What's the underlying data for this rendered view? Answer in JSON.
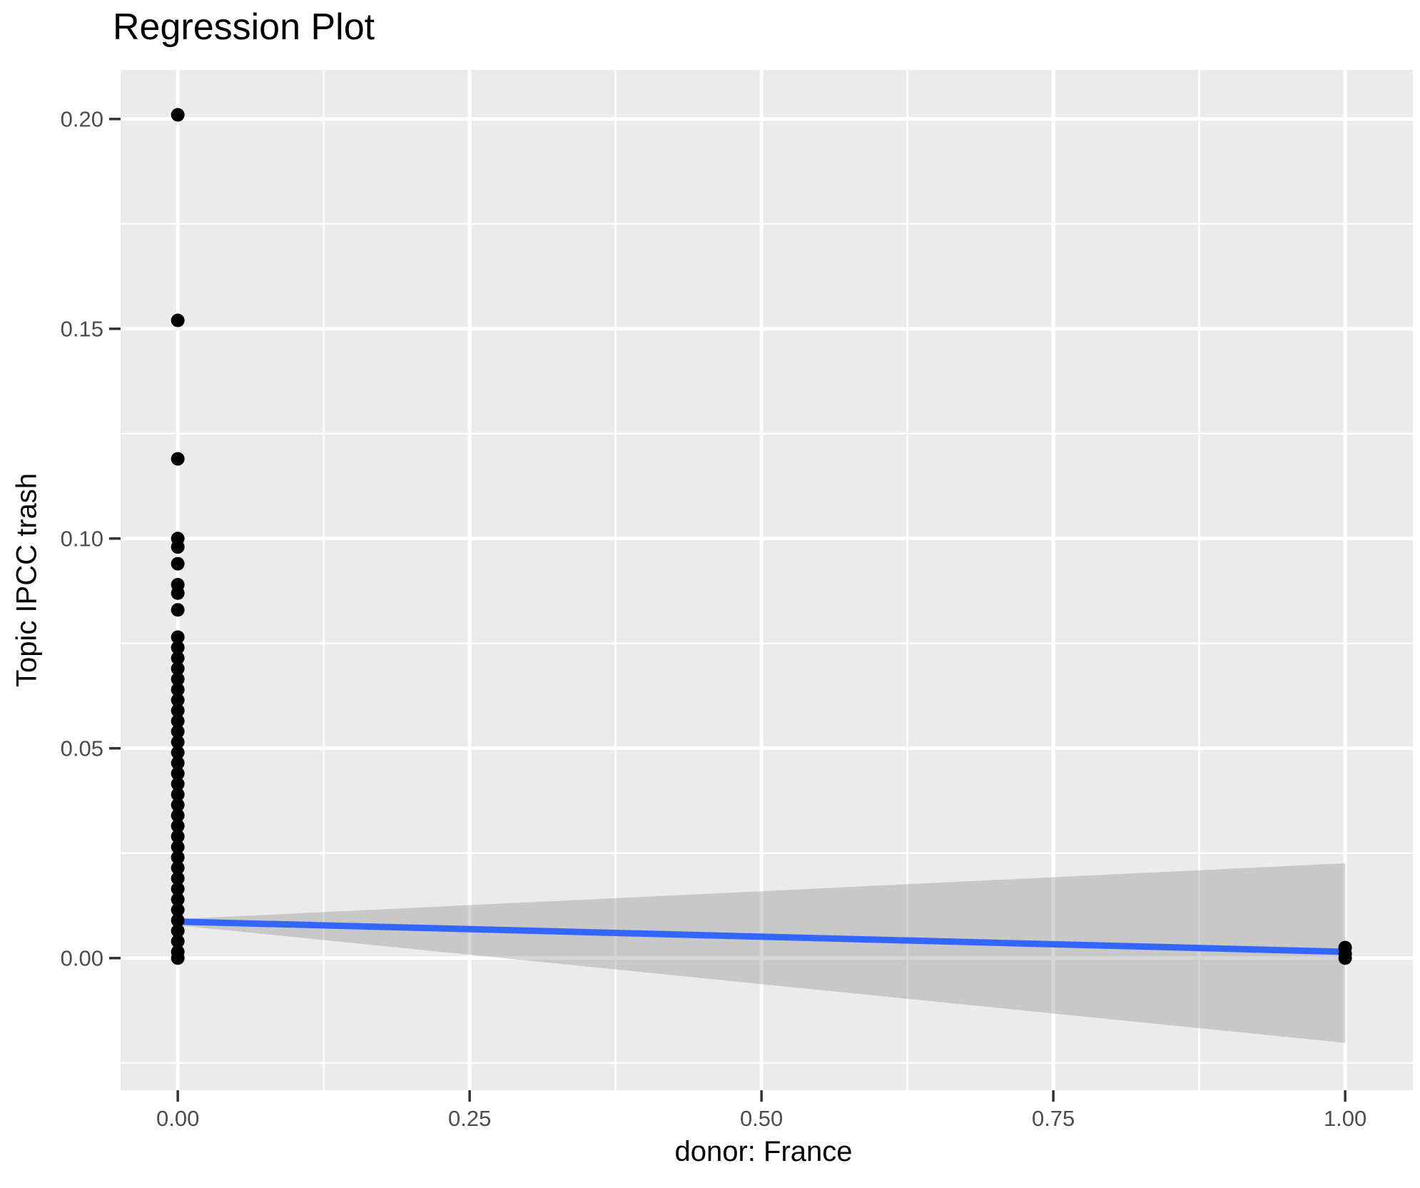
{
  "chart_data": {
    "type": "scatter",
    "title": "Regression Plot",
    "xlabel": "donor: France",
    "ylabel": "Topic IPCC trash",
    "xlim": [
      -0.049,
      1.058
    ],
    "ylim": [
      -0.0315,
      0.2117
    ],
    "grid": true,
    "legend": false,
    "x_ticks": {
      "values": [
        0.0,
        0.25,
        0.5,
        0.75,
        1.0
      ],
      "labels": [
        "0.00",
        "0.25",
        "0.50",
        "0.75",
        "1.00"
      ]
    },
    "y_ticks": {
      "values": [
        0.0,
        0.05,
        0.1,
        0.15,
        0.2
      ],
      "labels": [
        "0.00",
        "0.05",
        "0.10",
        "0.15",
        "0.20"
      ]
    },
    "x_minor": [
      0.125,
      0.375,
      0.625,
      0.875
    ],
    "y_minor": [
      -0.025,
      0.025,
      0.075,
      0.125,
      0.175
    ],
    "series": [
      {
        "name": "observations at donor=0",
        "x": 0,
        "y": [
          0.201,
          0.152,
          0.119,
          0.1,
          0.098,
          0.094,
          0.089,
          0.087,
          0.083,
          0.0765,
          0.074,
          0.0715,
          0.069,
          0.0665,
          0.064,
          0.0615,
          0.059,
          0.0565,
          0.054,
          0.0515,
          0.049,
          0.0465,
          0.044,
          0.0415,
          0.039,
          0.0365,
          0.034,
          0.0315,
          0.029,
          0.0265,
          0.024,
          0.0215,
          0.019,
          0.0165,
          0.014,
          0.0115,
          0.009,
          0.0065,
          0.004,
          0.0015,
          0.0
        ]
      },
      {
        "name": "observations at donor=1",
        "x": 1,
        "y": [
          0.0025,
          0.001,
          0.0
        ]
      }
    ],
    "regression_line": {
      "x": [
        0,
        1
      ],
      "y": [
        0.0087,
        0.0015
      ]
    },
    "confidence_band": {
      "x": [
        0,
        1
      ],
      "upper": [
        0.0093,
        0.0226
      ],
      "lower": [
        0.0078,
        -0.0202
      ]
    },
    "colors": {
      "panel_bg": "#EBEBEB",
      "grid": "#FFFFFF",
      "point": "#000000",
      "line": "#3366FF",
      "band": "rgba(127,127,127,0.32)",
      "tick_text": "#4D4D4D",
      "tick_mark": "#333333",
      "title_text": "#000000"
    }
  }
}
